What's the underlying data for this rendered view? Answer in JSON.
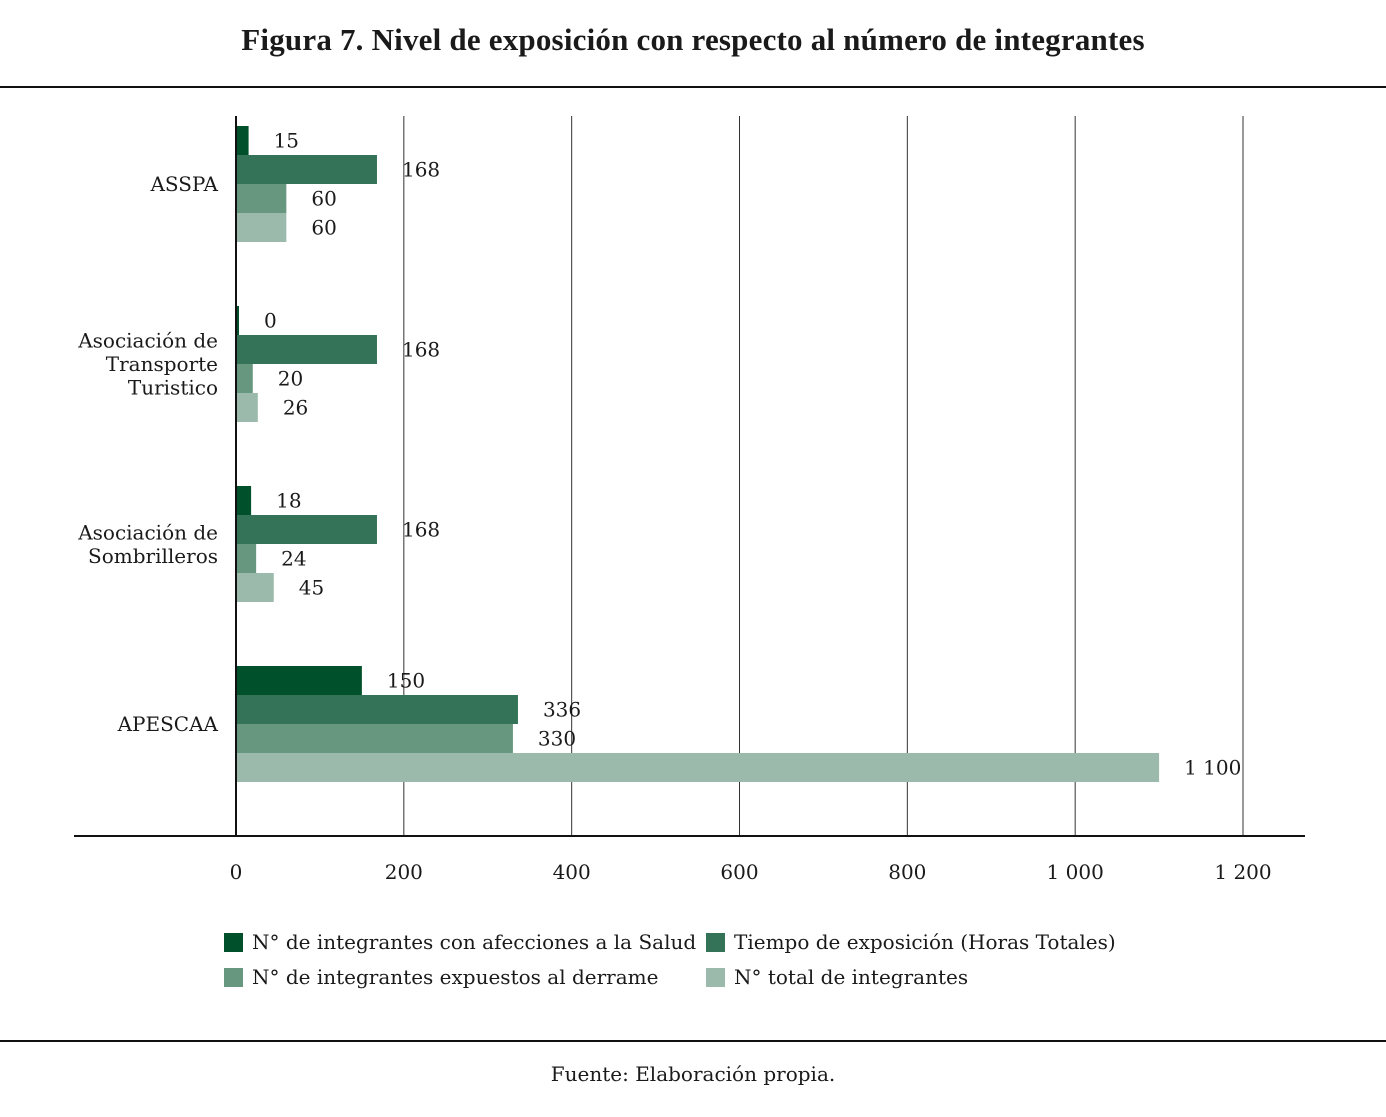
{
  "chart_data": {
    "type": "bar",
    "orientation": "horizontal",
    "title": "Figura 7. Nivel de exposición con respecto al número de integrantes",
    "xlabel": "",
    "ylabel": "",
    "xlim": [
      0,
      1200
    ],
    "grid": true,
    "x_ticks": [
      0,
      200,
      400,
      600,
      800,
      1000,
      1200
    ],
    "x_tick_labels": [
      "0",
      "200",
      "400",
      "600",
      "800",
      "1 000",
      "1 200"
    ],
    "categories": [
      "ASSPA",
      "Asociación de Transporte Turistico",
      "Asociación de Sombrilleros",
      "APESCAA"
    ],
    "category_label_lines": [
      [
        "ASSPA"
      ],
      [
        "Asociación de",
        "Transporte",
        "Turistico"
      ],
      [
        "Asociación de",
        "Sombrilleros"
      ],
      [
        "APESCAA"
      ]
    ],
    "series": [
      {
        "name": "N° de integrantes con afecciones a la Salud",
        "color": "#00512b",
        "values": [
          15,
          0,
          18,
          150
        ],
        "labels": [
          "15",
          "0",
          "18",
          "150"
        ]
      },
      {
        "name": "Tiempo de exposición (Horas Totales)",
        "color": "#347357",
        "values": [
          168,
          168,
          168,
          336
        ],
        "labels": [
          "168",
          "168",
          "168",
          "336"
        ]
      },
      {
        "name": "N° de integrantes expuestos al derrame",
        "color": "#67977f",
        "values": [
          60,
          20,
          24,
          330
        ],
        "labels": [
          "60",
          "20",
          "24",
          "330"
        ]
      },
      {
        "name": "N° total de integrantes",
        "color": "#9bbaab",
        "values": [
          60,
          26,
          45,
          1100
        ],
        "labels": [
          "60",
          "26",
          "45",
          "1 100"
        ]
      }
    ],
    "legend_position": "bottom",
    "source": "Fuente: Elaboración propia."
  }
}
